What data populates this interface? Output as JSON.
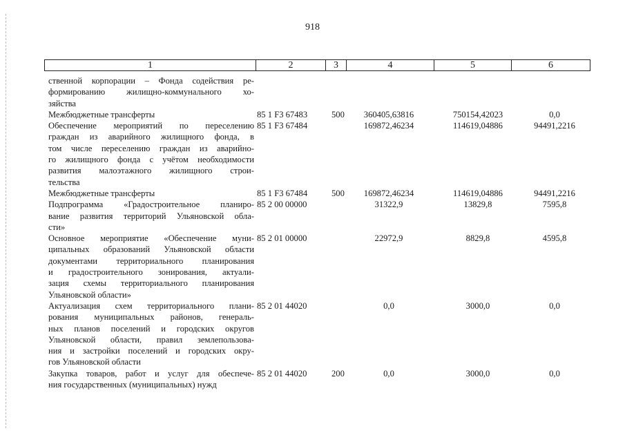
{
  "page_number": "918",
  "header": [
    "1",
    "2",
    "3",
    "4",
    "5",
    "6"
  ],
  "rows": [
    {
      "lines": [
        "ственной корпорации – Фонда содействия ре-",
        "формированию жилищно-коммунального хо-",
        "зяйства"
      ],
      "code": "",
      "type": "",
      "v4": "",
      "v5": "",
      "v6": ""
    },
    {
      "lines": [
        "Межбюджетные трансферты"
      ],
      "code": "85 1 F3 67483",
      "type": "500",
      "v4": "360405,63816",
      "v5": "750154,42023",
      "v6": "0,0"
    },
    {
      "lines": [
        "Обеспечение мероприятий по переселению",
        "граждан из аварийного жилищного фонда, в",
        "том числе переселению граждан из аварийно-",
        "го жилищного фонда с учётом необходимости",
        "развития малоэтажного жилищного строи-",
        "тельства"
      ],
      "code": "85 1 F3 67484",
      "type": "",
      "v4": "169872,46234",
      "v5": "114619,04886",
      "v6": "94491,2216"
    },
    {
      "lines": [
        "Межбюджетные трансферты"
      ],
      "code": "85 1 F3 67484",
      "type": "500",
      "v4": "169872,46234",
      "v5": "114619,04886",
      "v6": "94491,2216"
    },
    {
      "lines": [
        "Подпрограмма «Градостроительное планиро-",
        "вание развития территорий Ульяновской обла-",
        "сти»"
      ],
      "code": "85 2 00 00000",
      "type": "",
      "v4": "31322,9",
      "v5": "13829,8",
      "v6": "7595,8"
    },
    {
      "lines": [
        "Основное мероприятие «Обеспечение муни-",
        "ципальных образований Ульяновской области",
        "документами территориального планирования",
        "и градостроительного зонирования, актуали-",
        "зация схемы территориального планирования",
        "Ульяновской области»"
      ],
      "code": "85 2 01 00000",
      "type": "",
      "v4": "22972,9",
      "v5": "8829,8",
      "v6": "4595,8"
    },
    {
      "lines": [
        "Актуализация схем территориального плани-",
        "рования муниципальных районов, генераль-",
        "ных планов поселений и городских округов",
        "Ульяновской области, правил землепользова-",
        "ния и застройки поселений и городских окру-",
        "гов Ульяновской области"
      ],
      "code": "85 2 01 44020",
      "type": "",
      "v4": "0,0",
      "v5": "3000,0",
      "v6": "0,0"
    },
    {
      "lines": [
        "Закупка товаров, работ и услуг для обеспече-",
        "ния государственных (муниципальных) нужд"
      ],
      "code": "85 2 01 44020",
      "type": "200",
      "v4": "0,0",
      "v5": "3000,0",
      "v6": "0,0"
    }
  ]
}
